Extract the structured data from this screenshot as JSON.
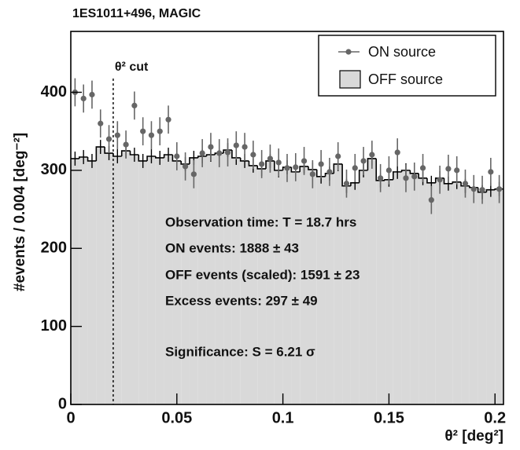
{
  "chart_data": {
    "type": "histogram",
    "title": "1ES1011+496, MAGIC",
    "x_label": "θ² [deg²]",
    "y_label": "#events / 0.004 [deg⁻²]",
    "bins": [
      0,
      0.004,
      0.008,
      0.012,
      0.016,
      0.02,
      0.024,
      0.028,
      0.032,
      0.036,
      0.04,
      0.044,
      0.048,
      0.052,
      0.056,
      0.06,
      0.064,
      0.068,
      0.072,
      0.076,
      0.08,
      0.084,
      0.088,
      0.092,
      0.096,
      0.1,
      0.104,
      0.108,
      0.112,
      0.116,
      0.12,
      0.124,
      0.128,
      0.132,
      0.136,
      0.14,
      0.144,
      0.148,
      0.152,
      0.156,
      0.16,
      0.164,
      0.168,
      0.172,
      0.176,
      0.18,
      0.184,
      0.188,
      0.192,
      0.196,
      0.2,
      0.204
    ],
    "series": [
      {
        "name": "ON source",
        "color": "#666666",
        "values": [
          400,
          392,
          397,
          360,
          340,
          345,
          333,
          383,
          350,
          345,
          350,
          365,
          318,
          305,
          295,
          322,
          330,
          322,
          323,
          332,
          330,
          320,
          308,
          315,
          310,
          303,
          304,
          312,
          295,
          308,
          298,
          318,
          283,
          303,
          312,
          320,
          290,
          300,
          323,
          290,
          292,
          303,
          262,
          288,
          302,
          300,
          283,
          276,
          275,
          298,
          276
        ],
        "errors": [
          18,
          18,
          18,
          18,
          18,
          18,
          18,
          18,
          18,
          18,
          18,
          18,
          18,
          18,
          18,
          18,
          18,
          18,
          18,
          18,
          18,
          18,
          18,
          18,
          18,
          18,
          18,
          18,
          18,
          18,
          18,
          18,
          18,
          18,
          18,
          18,
          18,
          18,
          18,
          18,
          18,
          18,
          18,
          18,
          18,
          18,
          18,
          18,
          18,
          18,
          18
        ]
      },
      {
        "name": "OFF source",
        "color": "#d9d9d9",
        "values": [
          315,
          317,
          312,
          330,
          322,
          318,
          325,
          320,
          312,
          318,
          316,
          320,
          312,
          308,
          316,
          318,
          320,
          322,
          326,
          316,
          312,
          306,
          302,
          312,
          300,
          304,
          298,
          305,
          301,
          292,
          296,
          308,
          280,
          284,
          300,
          315,
          287,
          288,
          298,
          300,
          296,
          290,
          284,
          290,
          283,
          285,
          280,
          278,
          272,
          275,
          276
        ],
        "errors": [
          9,
          9,
          9,
          9,
          9,
          9,
          9,
          9,
          9,
          9,
          9,
          9,
          9,
          9,
          9,
          9,
          9,
          9,
          9,
          9,
          9,
          9,
          9,
          9,
          9,
          9,
          9,
          9,
          9,
          9,
          9,
          9,
          9,
          9,
          9,
          9,
          9,
          9,
          9,
          9,
          9,
          9,
          9,
          9,
          9,
          9,
          9,
          9,
          9,
          9,
          9
        ]
      }
    ],
    "xlim": [
      0,
      0.204
    ],
    "ylim": [
      0,
      478
    ],
    "xticks": [
      0,
      0.05,
      0.1,
      0.15,
      0.2
    ],
    "yticks": [
      0,
      100,
      200,
      300,
      400
    ],
    "cut": {
      "value": 0.02,
      "label": "θ² cut"
    },
    "annotations": [
      "Observation time: T = 18.7 hrs",
      "ON events: 1888 ± 43",
      "OFF events (scaled): 1591 ± 23",
      "Excess events: 297 ± 49",
      "Significance: S = 6.21 σ"
    ],
    "legend": "upper right"
  }
}
